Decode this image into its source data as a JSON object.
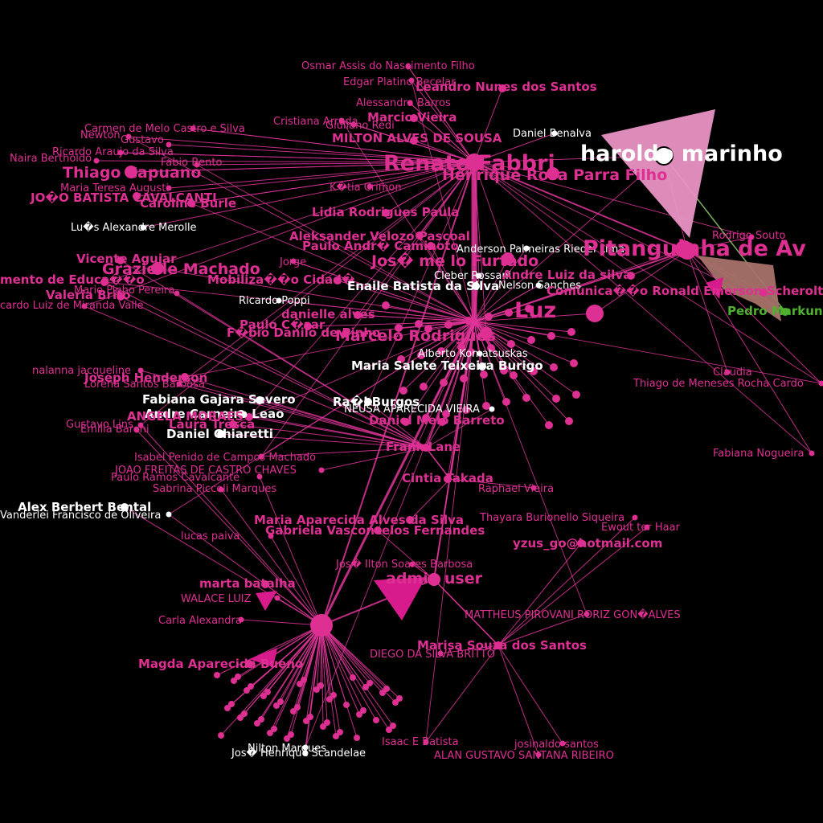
{
  "colors": {
    "background": "#000000",
    "edge": "#e0359a",
    "pink": "#de2f92",
    "magenta_bold": "#d81b8c",
    "white": "#ffffff",
    "light_pink_arrow": "#e994c4",
    "brown_arrow": "#a6726a",
    "green": "#4fb02f",
    "light_green_edge": "#8fd070"
  },
  "nodes": [
    {
      "label": "Osmar Assis do Nascimento Filho",
      "color": "pink",
      "size": "small"
    },
    {
      "label": "Edgar Platino Becelar",
      "color": "pink",
      "size": "small"
    },
    {
      "label": "Leandro Nunes dos Santos",
      "color": "pink",
      "size": "medium"
    },
    {
      "label": "Alessandra Barros",
      "color": "pink",
      "size": "small"
    },
    {
      "label": "Marcio Vieira",
      "color": "pink",
      "size": "medium"
    },
    {
      "label": "Cristiana Arruda",
      "color": "pink",
      "size": "small"
    },
    {
      "label": "Giuliano Redi",
      "color": "pink",
      "size": "small"
    },
    {
      "label": "MILTON ALVES DE SOUSA",
      "color": "pink",
      "size": "medium"
    },
    {
      "label": "Daniel Benalva",
      "color": "white",
      "size": "small"
    },
    {
      "label": "haroldo marinho",
      "color": "white",
      "size": "xlarge"
    },
    {
      "label": "Renato Fabbri",
      "color": "pink",
      "size": "xlarge"
    },
    {
      "label": "Henrique Rosa Parra Filho",
      "color": "pink",
      "size": "large"
    },
    {
      "label": "Carmen de Melo Castro e Silva",
      "color": "pink",
      "size": "small"
    },
    {
      "label": "Newton",
      "color": "pink",
      "size": "small"
    },
    {
      "label": "Gustavo",
      "color": "pink",
      "size": "small"
    },
    {
      "label": "Ricardo Araujo da Silva",
      "color": "pink",
      "size": "small"
    },
    {
      "label": "Naira Bertholdo",
      "color": "pink",
      "size": "small"
    },
    {
      "label": "Fabio Bento",
      "color": "pink",
      "size": "small"
    },
    {
      "label": "Thiago Capuano",
      "color": "pink",
      "size": "large"
    },
    {
      "label": "Maria Teresa Augusti",
      "color": "pink",
      "size": "small"
    },
    {
      "label": "JO�O BATISTA CAVALCANTI",
      "color": "pink",
      "size": "medium"
    },
    {
      "label": "Caroline Burle",
      "color": "pink",
      "size": "medium"
    },
    {
      "label": "Lu�s Alexandre Merolle",
      "color": "white",
      "size": "small"
    },
    {
      "label": "K�tia Crimon",
      "color": "pink",
      "size": "small"
    },
    {
      "label": "Lidia Rodrigues Paula",
      "color": "pink",
      "size": "medium"
    },
    {
      "label": "Aleksander Velozo Pascoal",
      "color": "pink",
      "size": "medium"
    },
    {
      "label": "Paulo Andr� Caminoto",
      "color": "pink",
      "size": "medium"
    },
    {
      "label": "Jos� me lo Furtado",
      "color": "pink",
      "size": "large"
    },
    {
      "label": "Anderson Palmeiras Riedel Lima",
      "color": "white",
      "size": "small"
    },
    {
      "label": "Pitanguinha de Av",
      "color": "pink",
      "size": "xlarge"
    },
    {
      "label": "Rodrigo Souto",
      "color": "pink",
      "size": "small"
    },
    {
      "label": "Grazielle Machado",
      "color": "pink",
      "size": "large"
    },
    {
      "label": "Vicente Aguiar",
      "color": "pink",
      "size": "medium"
    },
    {
      "label": "mento de Educa��o",
      "color": "pink",
      "size": "medium"
    },
    {
      "label": "Valeria Brito",
      "color": "pink",
      "size": "medium"
    },
    {
      "label": "Mario Pinho Pereira",
      "color": "pink",
      "size": "small"
    },
    {
      "label": "cardo Luiz de Miranda Valle",
      "color": "pink",
      "size": "small"
    },
    {
      "label": "Jorge",
      "color": "pink",
      "size": "small"
    },
    {
      "label": "Mobiliza��o Cidad�",
      "color": "pink",
      "size": "medium"
    },
    {
      "label": "Cleber Rossani",
      "color": "white",
      "size": "small"
    },
    {
      "label": "Enaile Batista da Silva",
      "color": "white",
      "size": "medium"
    },
    {
      "label": "Nelson Sanches",
      "color": "white",
      "size": "small"
    },
    {
      "label": "Andre Luiz da silva",
      "color": "pink",
      "size": "medium"
    },
    {
      "label": "Comunica��o Ronald Emerson Scherolt da Costa",
      "color": "pink",
      "size": "medium"
    },
    {
      "label": "Ricardo Poppi",
      "color": "white",
      "size": "small"
    },
    {
      "label": "danielle alves",
      "color": "pink",
      "size": "medium"
    },
    {
      "label": "Paulo C�sar",
      "color": "pink",
      "size": "medium"
    },
    {
      "label": "F�bio Danilo de Pinho",
      "color": "pink",
      "size": "medium"
    },
    {
      "label": "Marcelo Rodrigues",
      "color": "pink",
      "size": "large"
    },
    {
      "label": "Luz",
      "color": "pink",
      "size": "xlarge"
    },
    {
      "label": "Alberto Komatsuskas",
      "color": "white",
      "size": "small"
    },
    {
      "label": "Pedro Markun",
      "color": "green",
      "size": "medium"
    },
    {
      "label": "nalanna jacqueline",
      "color": "pink",
      "size": "small"
    },
    {
      "label": "Joseph Henderson",
      "color": "pink",
      "size": "medium"
    },
    {
      "label": "Lorena Santos Barbosa",
      "color": "pink",
      "size": "small"
    },
    {
      "label": "Maria Salete Teixeira Burigo",
      "color": "white",
      "size": "medium"
    },
    {
      "label": "Claudia",
      "color": "pink",
      "size": "small"
    },
    {
      "label": "Thiago de Meneses Rocha Cardo",
      "color": "pink",
      "size": "small"
    },
    {
      "label": "Fabiana Gajara Severo",
      "color": "white",
      "size": "medium"
    },
    {
      "label": "Andre Carneiro Leao",
      "color": "white",
      "size": "medium"
    },
    {
      "label": "ANGELA MORAES",
      "color": "pink",
      "size": "medium"
    },
    {
      "label": "Laura Tresca",
      "color": "pink",
      "size": "medium"
    },
    {
      "label": "Daniel Chiaretti",
      "color": "white",
      "size": "medium"
    },
    {
      "label": "Ra�l Burgos",
      "color": "white",
      "size": "medium"
    },
    {
      "label": "NEUSA APARECIDA VIEIRA",
      "color": "white",
      "size": "small"
    },
    {
      "label": "Daniel Melo Barreto",
      "color": "pink",
      "size": "medium"
    },
    {
      "label": "Gustavo Lins",
      "color": "pink",
      "size": "small"
    },
    {
      "label": "Emilia Baroni",
      "color": "pink",
      "size": "small"
    },
    {
      "label": "Frank Lane",
      "color": "pink",
      "size": "medium"
    },
    {
      "label": "Isabel Penido de Campos Machado",
      "color": "pink",
      "size": "small"
    },
    {
      "label": "JOAO FREITAS DE CASTRO CHAVES",
      "color": "pink",
      "size": "small"
    },
    {
      "label": "Paulo Ramos Cavalcante",
      "color": "pink",
      "size": "small"
    },
    {
      "label": "Sabrina Piccoli Marques",
      "color": "pink",
      "size": "small"
    },
    {
      "label": "Cintia Takada",
      "color": "pink",
      "size": "medium"
    },
    {
      "label": "Raphael Vieira",
      "color": "pink",
      "size": "small"
    },
    {
      "label": "Fabiana Nogueira",
      "color": "pink",
      "size": "small"
    },
    {
      "label": "Alex Berbert Bental",
      "color": "white",
      "size": "medium"
    },
    {
      "label": "Vanderlei Francisco de Oliveira",
      "color": "white",
      "size": "small"
    },
    {
      "label": "Thayara Burionello Siqueira",
      "color": "pink",
      "size": "small"
    },
    {
      "label": "Ewout ter Haar",
      "color": "pink",
      "size": "small"
    },
    {
      "label": "Maria Aparecida Alves da Silva",
      "color": "pink",
      "size": "medium"
    },
    {
      "label": "Gabriela Vasconcelos Fernandes",
      "color": "pink",
      "size": "medium"
    },
    {
      "label": "yzus_go@hotmail.com",
      "color": "pink",
      "size": "medium"
    },
    {
      "label": "lucas paiva",
      "color": "pink",
      "size": "small"
    },
    {
      "label": "Jos� Ilton Soares Barbosa",
      "color": "pink",
      "size": "small"
    },
    {
      "label": "admin user",
      "color": "pink",
      "size": "large"
    },
    {
      "label": "marta batalha",
      "color": "pink",
      "size": "medium"
    },
    {
      "label": "WALACE LUIZ",
      "color": "pink",
      "size": "small"
    },
    {
      "label": "Carla Alexandra",
      "color": "pink",
      "size": "small"
    },
    {
      "label": "MATTHEUS PIROVANI RORIZ GON�ALVES",
      "color": "pink",
      "size": "small"
    },
    {
      "label": "Marisa Souza dos Santos",
      "color": "pink",
      "size": "medium"
    },
    {
      "label": "DIEGO DA SILVA BRITTO",
      "color": "pink",
      "size": "small"
    },
    {
      "label": "Magda Aparecida Bueno",
      "color": "pink",
      "size": "medium"
    },
    {
      "label": "Isaac E Batista",
      "color": "pink",
      "size": "small"
    },
    {
      "label": "josinaldo santos",
      "color": "pink",
      "size": "small"
    },
    {
      "label": "ALAN GUSTAVO SANTANA RIBEIRO",
      "color": "pink",
      "size": "small"
    },
    {
      "label": "Jos� Henrique Scandelae",
      "color": "white",
      "size": "small"
    },
    {
      "label": "Nilton Marques",
      "color": "white",
      "size": "small"
    }
  ]
}
